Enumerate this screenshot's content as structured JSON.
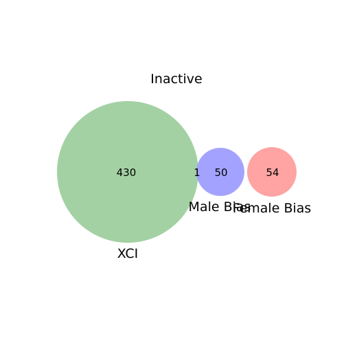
{
  "title": "Inactive",
  "sets": [
    {
      "key": "xci",
      "label": "XCI",
      "color": "#99cc99"
    },
    {
      "key": "male",
      "label": "Male Bias",
      "color": "#9999ff"
    },
    {
      "key": "female",
      "label": "Female Bias",
      "color": "#ff9999"
    }
  ],
  "counts": {
    "xci_only": "430",
    "xci_and_male": "1",
    "male_only": "50",
    "female_only": "54"
  }
}
